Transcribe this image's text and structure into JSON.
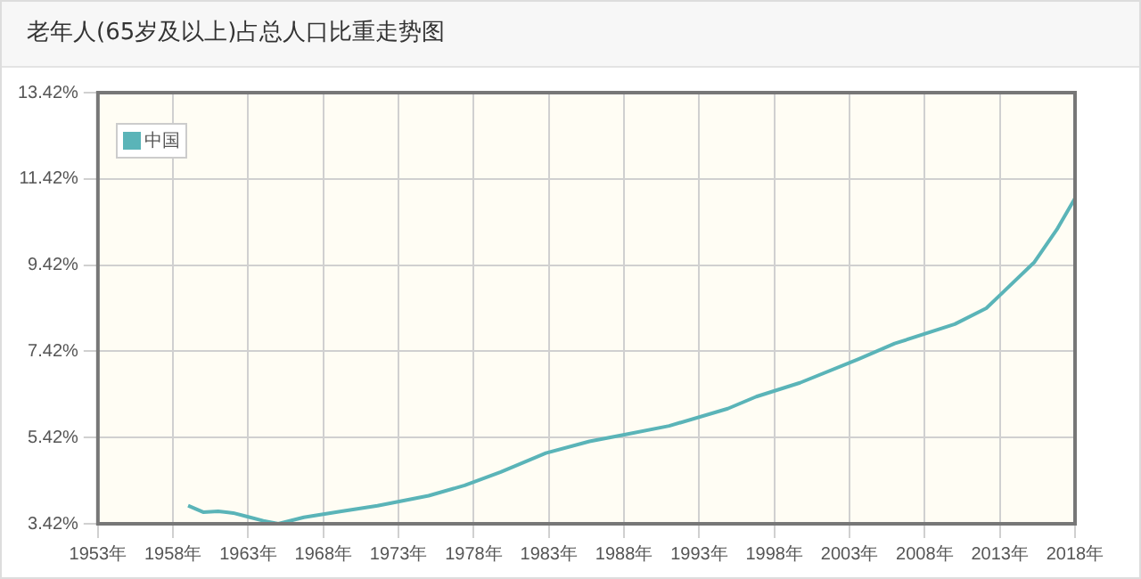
{
  "chart_data": {
    "type": "line",
    "title": "老年人(65岁及以上)占总人口比重走势图",
    "series": [
      {
        "name": "中国",
        "color": "#5ab4b8",
        "x": [
          1959,
          1960,
          1961,
          1962,
          1963,
          1964,
          1965,
          1966.7,
          1969.2,
          1971.6,
          1975,
          1977.4,
          1979.8,
          1982.8,
          1985.7,
          1988.1,
          1991,
          1994.9,
          1996.8,
          1999.7,
          2003.6,
          2006,
          2010,
          2012.1,
          2013.3,
          2015.3,
          2016.8,
          2018
        ],
        "values": [
          3.84,
          3.69,
          3.71,
          3.67,
          3.58,
          3.49,
          3.42,
          3.57,
          3.71,
          3.84,
          4.07,
          4.31,
          4.62,
          5.06,
          5.33,
          5.49,
          5.69,
          6.09,
          6.37,
          6.69,
          7.24,
          7.6,
          8.05,
          8.42,
          8.82,
          9.49,
          10.25,
          10.97
        ]
      }
    ],
    "xlim": [
      1953,
      2018
    ],
    "xticks": [
      {
        "value": 1953,
        "label": "1953年"
      },
      {
        "value": 1958,
        "label": "1958年"
      },
      {
        "value": 1963,
        "label": "1963年"
      },
      {
        "value": 1968,
        "label": "1968年"
      },
      {
        "value": 1973,
        "label": "1973年"
      },
      {
        "value": 1978,
        "label": "1978年"
      },
      {
        "value": 1983,
        "label": "1983年"
      },
      {
        "value": 1988,
        "label": "1988年"
      },
      {
        "value": 1993,
        "label": "1993年"
      },
      {
        "value": 1998,
        "label": "1998年"
      },
      {
        "value": 2003,
        "label": "2003年"
      },
      {
        "value": 2008,
        "label": "2008年"
      },
      {
        "value": 2013,
        "label": "2013年"
      },
      {
        "value": 2018,
        "label": "2018年"
      }
    ],
    "ylim": [
      3.42,
      13.42
    ],
    "yticks": [
      {
        "value": 3.42,
        "label": "3.42%"
      },
      {
        "value": 5.42,
        "label": "5.42%"
      },
      {
        "value": 7.42,
        "label": "7.42%"
      },
      {
        "value": 9.42,
        "label": "9.42%"
      },
      {
        "value": 11.42,
        "label": "11.42%"
      },
      {
        "value": 13.42,
        "label": "13.42%"
      }
    ],
    "grid": true,
    "legend": "top left",
    "marker": "none",
    "line_style": "solid"
  }
}
